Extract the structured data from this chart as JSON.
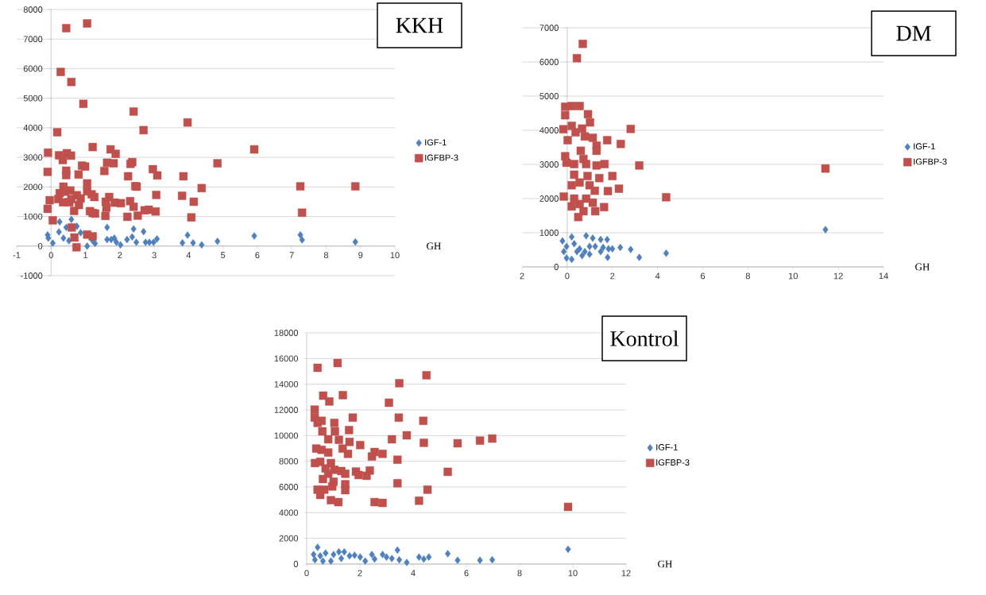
{
  "chart_data": [
    {
      "type": "scatter",
      "title": "KKH",
      "xlabel": "GH",
      "xlim": [
        -1,
        10
      ],
      "ylim": [
        -1000,
        8000
      ],
      "xticks": [
        -1,
        0,
        1,
        2,
        3,
        4,
        5,
        6,
        7,
        8,
        9,
        10
      ],
      "yticks": [
        -1000,
        0,
        1000,
        2000,
        3000,
        4000,
        5000,
        6000,
        7000,
        8000
      ],
      "grid": "y",
      "legend": "right",
      "series": [
        {
          "name": "IGF-1",
          "color": "#4f81bd",
          "marker": "diamond",
          "x": [
            -0.1,
            -0.08,
            0.05,
            0.25,
            0.23,
            0.44,
            0.59,
            0.75,
            0.36,
            0.52,
            0.67,
            0.86,
            0.98,
            1.05,
            1.26,
            1.28,
            1.21,
            1.63,
            1.63,
            1.75,
            1.84,
            1.9,
            2.02,
            2.21,
            2.4,
            2.36,
            2.48,
            2.69,
            2.75,
            2.86,
            2.98,
            3.08,
            3.82,
            3.97,
            4.13,
            4.38,
            4.84,
            5.91,
            7.25,
            7.3,
            8.85
          ],
          "values": [
            380,
            270,
            100,
            820,
            480,
            630,
            900,
            670,
            270,
            180,
            null,
            450,
            null,
            0,
            null,
            90,
            180,
            630,
            220,
            220,
            270,
            130,
            40,
            220,
            580,
            310,
            130,
            490,
            130,
            130,
            130,
            240,
            110,
            370,
            110,
            40,
            160,
            340,
            380,
            210,
            140
          ]
        },
        {
          "name": "IGFBP-3",
          "color": "#c0504d",
          "marker": "square",
          "x": [
            0.44,
            1.05,
            0.28,
            0.59,
            0.94,
            2.4,
            3.97,
            2.69,
            0.18,
            1.21,
            5.91,
            -0.09,
            1.73,
            1.88,
            0.23,
            0.46,
            0.58,
            0.34,
            1.63,
            1.82,
            2.36,
            2.31,
            4.84,
            0.9,
            0.99,
            2.96,
            0.44,
            -0.1,
            1.55,
            3.09,
            0.44,
            0.8,
            3.85,
            2.24,
            1.05,
            0.36,
            2.45,
            2.49,
            7.25,
            4.38,
            0.56,
            0.25,
            0.4,
            1.05,
            0.75,
            1.18,
            3.06,
            3.81,
            1.69,
            1.26,
            0.21,
            -0.04,
            0.59,
            0.86,
            0.35,
            0.53,
            1.59,
            1.85,
            2.03,
            2.3,
            4.15,
            0.81,
            1.61,
            2.4,
            -0.1,
            0.67,
            1.13,
            1.21,
            1.28,
            2.72,
            2.84,
            3.04,
            7.3,
            1.58,
            2.22,
            2.52,
            4.08,
            0.05,
            0.6,
            0.68,
            1.05,
            1.21,
            0.74,
            8.85
          ],
          "values": [
            7370,
            7530,
            5890,
            5550,
            4810,
            4550,
            4180,
            3920,
            3850,
            3350,
            3270,
            3160,
            3270,
            3120,
            3070,
            3140,
            3060,
            2910,
            2820,
            2800,
            2840,
            2780,
            2800,
            2720,
            2690,
            2600,
            2550,
            2510,
            2540,
            2390,
            2400,
            2420,
            2360,
            2360,
            2120,
            2010,
            2030,
            2010,
            2020,
            1960,
            1880,
            1790,
            1840,
            1850,
            1720,
            1750,
            1730,
            1700,
            1660,
            1660,
            1590,
            1550,
            1590,
            1610,
            1480,
            1480,
            1500,
            1470,
            1450,
            1520,
            1500,
            1390,
            1300,
            1330,
            1260,
            1190,
            1180,
            1120,
            1100,
            1210,
            1230,
            1170,
            1130,
            1020,
            990,
            1030,
            970,
            870,
            630,
            290,
            390,
            330,
            -40,
            2020
          ]
        }
      ]
    },
    {
      "type": "scatter",
      "title": "DM",
      "xlabel": "GH",
      "xlim": [
        -2,
        14
      ],
      "ylim": [
        0,
        7000
      ],
      "xticks": [
        {
          "value": -2,
          "label": "2"
        },
        0,
        2,
        4,
        6,
        8,
        10,
        12,
        14
      ],
      "yticks": [
        0,
        1000,
        2000,
        3000,
        4000,
        5000,
        6000,
        7000
      ],
      "grid": "y",
      "legend": "right",
      "series": [
        {
          "name": "IGF-1",
          "color": "#4f81bd",
          "marker": "diamond",
          "x": [
            -0.21,
            0.2,
            -0.03,
            0.31,
            0.55,
            0.84,
            1.13,
            1.48,
            1.77,
            -0.03,
            0.2,
            0.66,
            0.99,
            1.48,
            1.83,
            1.79,
            2.0,
            2.35,
            2.81,
            3.19,
            4.38,
            -0.15,
            0.43,
            1.24,
            0.78,
            0.99,
            1.59,
            11.43
          ],
          "values": [
            760,
            880,
            600,
            680,
            530,
            910,
            840,
            800,
            800,
            260,
            220,
            330,
            370,
            450,
            530,
            280,
            530,
            570,
            510,
            280,
            400,
            450,
            450,
            600,
            450,
            600,
            570,
            1090
          ]
        },
        {
          "name": "IGFBP-3",
          "color": "#c0504d",
          "marker": "square",
          "x": [
            0.69,
            0.43,
            -0.09,
            0.2,
            0.55,
            -0.09,
            0.92,
            1.01,
            -0.17,
            0.2,
            0.37,
            0.66,
            2.81,
            0.02,
            0.78,
            1.13,
            1.77,
            2.37,
            1.3,
            0.6,
            1.3,
            -0.09,
            -0.03,
            0.31,
            0.72,
            0.84,
            1.3,
            1.65,
            3.19,
            0.31,
            0.9,
            2.0,
            1.42,
            0.2,
            0.55,
            0.99,
            2.29,
            1.22,
            1.8,
            -0.15,
            0.31,
            0.84,
            4.38,
            1.13,
            0.2,
            0.55,
            1.63,
            0.72,
            1.24,
            0.49,
            11.43
          ],
          "values": [
            6530,
            6110,
            4690,
            4710,
            4710,
            4440,
            4470,
            4230,
            4030,
            4130,
            3940,
            4050,
            4040,
            3710,
            3820,
            3780,
            3710,
            3600,
            3550,
            3400,
            3400,
            3240,
            3050,
            3010,
            3160,
            3010,
            2970,
            3010,
            2970,
            2700,
            2660,
            2660,
            2600,
            2390,
            2470,
            2390,
            2290,
            2230,
            2220,
            2060,
            2000,
            2000,
            2040,
            1880,
            1770,
            1840,
            1750,
            1630,
            1630,
            1460,
            2880
          ]
        }
      ]
    },
    {
      "type": "scatter",
      "title": "Kontrol",
      "xlabel": "GH",
      "xlim": [
        0,
        12
      ],
      "ylim": [
        0,
        18000
      ],
      "xticks": [
        0,
        2,
        4,
        6,
        8,
        10,
        12
      ],
      "yticks": [
        0,
        2000,
        4000,
        6000,
        8000,
        10000,
        12000,
        14000,
        16000,
        18000
      ],
      "grid": "y",
      "legend": "right",
      "series": [
        {
          "name": "IGF-1",
          "color": "#4f81bd",
          "marker": "diamond",
          "x": [
            0.41,
            9.82,
            3.41,
            5.3,
            0.26,
            0.51,
            0.71,
            1.01,
            1.21,
            1.41,
            1.61,
            1.8,
            0.61,
            0.91,
            0.31,
            2.2,
            2.45,
            2.85,
            2.55,
            3.2,
            3.48,
            3.76,
            4.22,
            4.4,
            4.59,
            5.67,
            6.51,
            6.97,
            2.01,
            3.0,
            1.3
          ],
          "values": [
            1300,
            1150,
            1090,
            800,
            740,
            640,
            850,
            740,
            950,
            950,
            640,
            680,
            230,
            230,
            330,
            230,
            740,
            740,
            390,
            430,
            330,
            120,
            540,
            390,
            540,
            290,
            290,
            330,
            540,
            540,
            430
          ]
        },
        {
          "name": "IGFBP-3",
          "color": "#c0504d",
          "marker": "square",
          "x": [
            0.41,
            1.16,
            4.5,
            3.48,
            0.62,
            1.36,
            0.85,
            3.09,
            0.3,
            0.3,
            1.73,
            3.46,
            4.38,
            0.41,
            0.56,
            1.04,
            0.59,
            1.06,
            1.59,
            3.76,
            3.2,
            0.81,
            1.21,
            1.61,
            2.01,
            4.4,
            5.67,
            6.51,
            6.97,
            0.36,
            0.56,
            1.35,
            2.55,
            2.85,
            1.55,
            2.45,
            0.81,
            0.31,
            0.51,
            0.91,
            3.41,
            1.3,
            1.45,
            1.85,
            2.37,
            1.95,
            2.25,
            5.3,
            0.61,
            0.81,
            1.01,
            1.45,
            3.41,
            0.41,
            0.66,
            0.96,
            1.45,
            4.54,
            0.51,
            0.91,
            1.19,
            2.55,
            2.85,
            4.22,
            9.82,
            0.71,
            1.04
          ],
          "values": [
            15280,
            15650,
            14700,
            14080,
            13110,
            13150,
            12660,
            12560,
            12020,
            11400,
            11400,
            11400,
            11150,
            10990,
            11150,
            10990,
            10330,
            10330,
            10430,
            10020,
            9710,
            9710,
            9670,
            9510,
            9260,
            9440,
            9400,
            9610,
            9770,
            8990,
            8890,
            8990,
            8720,
            8580,
            8580,
            8370,
            8680,
            7860,
            7960,
            7860,
            8120,
            7240,
            7030,
            7200,
            7280,
            6930,
            6870,
            7180,
            6620,
            7030,
            6410,
            6210,
            6290,
            5790,
            5790,
            6040,
            5750,
            5790,
            5380,
            4970,
            4820,
            4820,
            4760,
            4930,
            4450,
            7440,
            7340
          ]
        }
      ]
    }
  ]
}
